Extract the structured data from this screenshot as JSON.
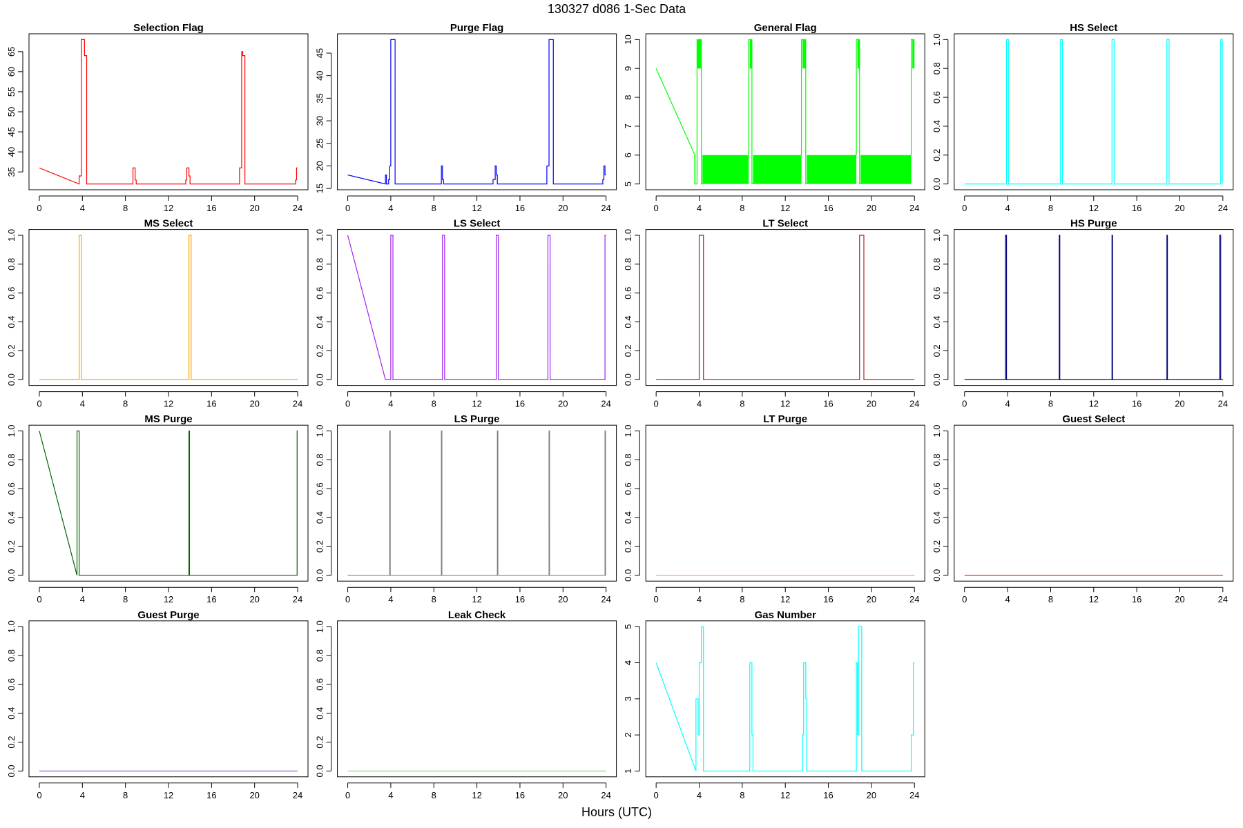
{
  "title": "130327    d086    1-Sec Data",
  "x_label": "Hours (UTC)",
  "chart_data": [
    {
      "type": "line",
      "title": "Selection Flag",
      "color": "#ff0000",
      "xlim": [
        -0.96,
        24.96
      ],
      "xticks": [
        0,
        4,
        8,
        12,
        16,
        20,
        24
      ],
      "ylim": [
        30.56,
        69.44
      ],
      "yticks": [
        35,
        40,
        45,
        50,
        55,
        60,
        65
      ],
      "x": [
        0,
        3.7,
        3.7,
        3.9,
        3.9,
        4.2,
        4.2,
        4.4,
        4.4,
        8.7,
        8.7,
        8.9,
        8.9,
        9,
        9,
        13.6,
        13.6,
        13.7,
        13.7,
        13.9,
        13.9,
        14,
        14,
        18.6,
        18.6,
        18.8,
        18.8,
        18.9,
        18.9,
        19.1,
        19.1,
        23.8,
        23.8,
        23.9,
        23.9,
        24
      ],
      "values": [
        36,
        32,
        34,
        34,
        68,
        68,
        64,
        64,
        32,
        32,
        36,
        36,
        33,
        33,
        32,
        32,
        33,
        33,
        36,
        36,
        34,
        34,
        32,
        32,
        36,
        36,
        65,
        65,
        64,
        64,
        32,
        32,
        33,
        33,
        36,
        36
      ]
    },
    {
      "type": "line",
      "title": "Purge Flag",
      "color": "#0000ff",
      "xlim": [
        -0.96,
        24.96
      ],
      "xticks": [
        0,
        4,
        8,
        12,
        16,
        20,
        24
      ],
      "ylim": [
        14.72,
        49.28
      ],
      "yticks": [
        15,
        20,
        25,
        30,
        35,
        40,
        45
      ],
      "x": [
        0,
        3.5,
        3.5,
        3.6,
        3.6,
        3.8,
        3.8,
        3.9,
        3.9,
        4,
        4,
        4.4,
        4.4,
        8.7,
        8.7,
        8.8,
        8.8,
        8.9,
        8.9,
        13.5,
        13.5,
        13.7,
        13.7,
        13.8,
        13.8,
        13.9,
        13.9,
        18.5,
        18.5,
        18.7,
        18.7,
        19.1,
        19.1,
        23.7,
        23.7,
        23.8,
        23.8,
        23.9,
        23.9,
        24
      ],
      "values": [
        18,
        16,
        18,
        18,
        16,
        16,
        17,
        17,
        20,
        20,
        48,
        48,
        16,
        16,
        20,
        20,
        17,
        17,
        16,
        16,
        17,
        17,
        20,
        20,
        18,
        18,
        16,
        16,
        20,
        20,
        48,
        48,
        16,
        16,
        17,
        17,
        20,
        20,
        18,
        18
      ]
    },
    {
      "type": "line",
      "title": "General Flag",
      "color": "#00ff00",
      "xlim": [
        -0.96,
        24.96
      ],
      "xticks": [
        0,
        4,
        8,
        12,
        16,
        20,
        24
      ],
      "ylim": [
        4.8,
        10.2
      ],
      "yticks": [
        5,
        6,
        7,
        8,
        9,
        10
      ],
      "x": [
        0,
        3.6,
        3.6,
        3.8,
        3.8,
        4.2,
        4.2,
        8.6,
        8.6,
        8.9,
        8.9,
        13.5,
        13.5,
        13.9,
        13.9,
        18.6,
        18.6,
        18.9,
        18.9,
        23.7,
        23.7,
        24
      ],
      "values": [
        9,
        6,
        5,
        5,
        10,
        10,
        5,
        6,
        10,
        10,
        5,
        6,
        10,
        10,
        5,
        6,
        10,
        10,
        5,
        6,
        10,
        10
      ],
      "bands": [
        {
          "x": [
            3.8,
            4.2
          ],
          "y": [
            9,
            10
          ]
        },
        {
          "x": [
            8.7,
            8.9
          ],
          "y": [
            9,
            10
          ]
        },
        {
          "x": [
            13.6,
            13.9
          ],
          "y": [
            9,
            10
          ]
        },
        {
          "x": [
            18.7,
            18.9
          ],
          "y": [
            9,
            10
          ]
        },
        {
          "x": [
            23.8,
            24
          ],
          "y": [
            9,
            10
          ]
        },
        {
          "x": [
            3.55,
            3.65
          ],
          "y": [
            5,
            6
          ]
        },
        {
          "x": [
            4.3,
            8.6
          ],
          "y": [
            5,
            6
          ]
        },
        {
          "x": [
            9.0,
            13.5
          ],
          "y": [
            5,
            6
          ]
        },
        {
          "x": [
            14.0,
            18.6
          ],
          "y": [
            5,
            6
          ]
        },
        {
          "x": [
            19.0,
            23.7
          ],
          "y": [
            5,
            6
          ]
        }
      ]
    },
    {
      "type": "line",
      "title": "HS Select",
      "color": "#00ffff",
      "xlim": [
        -0.96,
        24.96
      ],
      "xticks": [
        0,
        4,
        8,
        12,
        16,
        20,
        24
      ],
      "ylim": [
        -0.04,
        1.04
      ],
      "yticks": [
        {
          "value": 0,
          "label": "0.0"
        },
        0.2,
        0.4,
        0.6,
        0.8,
        {
          "value": 1,
          "label": "1.0"
        }
      ],
      "x": [
        0,
        3.9,
        3.9,
        4.1,
        4.1,
        8.9,
        8.9,
        9.1,
        9.1,
        13.7,
        13.7,
        13.9,
        13.9,
        18.8,
        18.8,
        19,
        19,
        23.8,
        23.8,
        23.95,
        23.95
      ],
      "values": [
        0,
        0,
        1,
        1,
        0,
        0,
        1,
        1,
        0,
        0,
        1,
        1,
        0,
        0,
        1,
        1,
        0,
        0,
        1,
        1,
        0
      ]
    },
    {
      "type": "line",
      "title": "MS Select",
      "color": "#ffa500",
      "xlim": [
        -0.96,
        24.96
      ],
      "xticks": [
        0,
        4,
        8,
        12,
        16,
        20,
        24
      ],
      "ylim": [
        -0.04,
        1.04
      ],
      "yticks": [
        {
          "value": 0,
          "label": "0.0"
        },
        0.2,
        0.4,
        0.6,
        0.8,
        {
          "value": 1,
          "label": "1.0"
        }
      ],
      "x": [
        0,
        3.7,
        3.7,
        3.9,
        3.9,
        13.9,
        13.9,
        14.1,
        14.1,
        24
      ],
      "values": [
        0,
        0,
        1,
        1,
        0,
        0,
        1,
        1,
        0,
        0
      ]
    },
    {
      "type": "line",
      "title": "LS Select",
      "color": "#a020f0",
      "xlim": [
        -0.96,
        24.96
      ],
      "xticks": [
        0,
        4,
        8,
        12,
        16,
        20,
        24
      ],
      "ylim": [
        -0.04,
        1.04
      ],
      "yticks": [
        {
          "value": 0,
          "label": "0.0"
        },
        0.2,
        0.4,
        0.6,
        0.8,
        {
          "value": 1,
          "label": "1.0"
        }
      ],
      "x": [
        0,
        3.5,
        4,
        4,
        4.2,
        4.2,
        8.8,
        8.8,
        9,
        9,
        13.8,
        13.8,
        14,
        14,
        18.6,
        18.6,
        18.8,
        18.8,
        23.9,
        23.9,
        24
      ],
      "values": [
        1,
        0,
        0,
        1,
        1,
        0,
        0,
        1,
        1,
        0,
        0,
        1,
        1,
        0,
        0,
        1,
        1,
        0,
        0,
        1,
        1
      ]
    },
    {
      "type": "line",
      "title": "LT Select",
      "color": "#a52a2a",
      "xlim": [
        -0.96,
        24.96
      ],
      "xticks": [
        0,
        4,
        8,
        12,
        16,
        20,
        24
      ],
      "ylim": [
        -0.04,
        1.04
      ],
      "yticks": [
        {
          "value": 0,
          "label": "0.0"
        },
        0.2,
        0.4,
        0.6,
        0.8,
        {
          "value": 1,
          "label": "1.0"
        }
      ],
      "x": [
        0,
        4,
        4,
        4.4,
        4.4,
        18.9,
        18.9,
        19.3,
        19.3,
        24
      ],
      "values": [
        0,
        0,
        1,
        1,
        0,
        0,
        1,
        1,
        0,
        0
      ]
    },
    {
      "type": "line",
      "title": "HS Purge",
      "color": "#000080",
      "xlim": [
        -0.96,
        24.96
      ],
      "xticks": [
        0,
        4,
        8,
        12,
        16,
        20,
        24
      ],
      "ylim": [
        -0.04,
        1.04
      ],
      "yticks": [
        {
          "value": 0,
          "label": "0.0"
        },
        0.2,
        0.4,
        0.6,
        0.8,
        {
          "value": 1,
          "label": "1.0"
        }
      ],
      "x": [
        0,
        3.8,
        3.8,
        3.9,
        3.9,
        8.8,
        8.8,
        8.85,
        8.85,
        13.7,
        13.7,
        13.75,
        13.75,
        18.8,
        18.8,
        18.85,
        18.85,
        23.7,
        23.7,
        23.8,
        23.8,
        24
      ],
      "values": [
        0,
        0,
        1,
        1,
        0,
        0,
        1,
        1,
        0,
        0,
        1,
        1,
        0,
        0,
        1,
        1,
        0,
        0,
        1,
        1,
        0,
        0
      ]
    },
    {
      "type": "line",
      "title": "MS Purge",
      "color": "#006400",
      "xlim": [
        -0.96,
        24.96
      ],
      "xticks": [
        0,
        4,
        8,
        12,
        16,
        20,
        24
      ],
      "ylim": [
        -0.04,
        1.04
      ],
      "yticks": [
        {
          "value": 0,
          "label": "0.0"
        },
        0.2,
        0.4,
        0.6,
        0.8,
        {
          "value": 1,
          "label": "1.0"
        }
      ],
      "x": [
        0,
        3.5,
        3.5,
        3.7,
        3.7,
        13.9,
        13.9,
        13.95,
        13.95,
        23.95,
        23.95,
        24
      ],
      "values": [
        1,
        0,
        1,
        1,
        0,
        0,
        1,
        1,
        0,
        0,
        1,
        1
      ]
    },
    {
      "type": "line",
      "title": "LS Purge",
      "color": "#808080",
      "xlim": [
        -0.96,
        24.96
      ],
      "xticks": [
        0,
        4,
        8,
        12,
        16,
        20,
        24
      ],
      "ylim": [
        -0.04,
        1.04
      ],
      "yticks": [
        {
          "value": 0,
          "label": "0.0"
        },
        0.2,
        0.4,
        0.6,
        0.8,
        {
          "value": 1,
          "label": "1.0"
        }
      ],
      "x": [
        0,
        3.9,
        3.9,
        3.95,
        3.95,
        8.7,
        8.7,
        8.75,
        8.75,
        13.9,
        13.9,
        13.95,
        13.95,
        18.7,
        18.7,
        18.75,
        18.75,
        23.9,
        23.9,
        23.95,
        23.95,
        24
      ],
      "values": [
        0,
        0,
        1,
        1,
        0,
        0,
        1,
        1,
        0,
        0,
        1,
        1,
        0,
        0,
        1,
        1,
        0,
        0,
        1,
        1,
        0,
        0
      ]
    },
    {
      "type": "line",
      "title": "LT Purge",
      "color": "#ee82ee",
      "xlim": [
        -0.96,
        24.96
      ],
      "xticks": [
        0,
        4,
        8,
        12,
        16,
        20,
        24
      ],
      "ylim": [
        -0.04,
        1.04
      ],
      "yticks": [
        {
          "value": 0,
          "label": "0.0"
        },
        0.2,
        0.4,
        0.6,
        0.8,
        {
          "value": 1,
          "label": "1.0"
        }
      ],
      "x": [
        0,
        24
      ],
      "values": [
        0,
        0
      ]
    },
    {
      "type": "line",
      "title": "Guest Select",
      "color": "#ff0000",
      "xlim": [
        -0.96,
        24.96
      ],
      "xticks": [
        0,
        4,
        8,
        12,
        16,
        20,
        24
      ],
      "ylim": [
        -0.04,
        1.04
      ],
      "yticks": [
        {
          "value": 0,
          "label": "0.0"
        },
        0.2,
        0.4,
        0.6,
        0.8,
        {
          "value": 1,
          "label": "1.0"
        }
      ],
      "x": [
        0,
        24
      ],
      "values": [
        0,
        0
      ]
    },
    {
      "type": "line",
      "title": "Guest Purge",
      "color": "#6a5acd",
      "xlim": [
        -0.96,
        24.96
      ],
      "xticks": [
        0,
        4,
        8,
        12,
        16,
        20,
        24
      ],
      "ylim": [
        -0.04,
        1.04
      ],
      "yticks": [
        {
          "value": 0,
          "label": "0.0"
        },
        0.2,
        0.4,
        0.6,
        0.8,
        {
          "value": 1,
          "label": "1.0"
        }
      ],
      "x": [
        0,
        24
      ],
      "values": [
        0,
        0
      ]
    },
    {
      "type": "line",
      "title": "Leak Check",
      "color": "#7ccd7c",
      "xlim": [
        -0.96,
        24.96
      ],
      "xticks": [
        0,
        4,
        8,
        12,
        16,
        20,
        24
      ],
      "ylim": [
        -0.04,
        1.04
      ],
      "yticks": [
        {
          "value": 0,
          "label": "0.0"
        },
        0.2,
        0.4,
        0.6,
        0.8,
        {
          "value": 1,
          "label": "1.0"
        }
      ],
      "x": [
        0,
        24
      ],
      "values": [
        0,
        0
      ]
    },
    {
      "type": "line",
      "title": "Gas Number",
      "color": "#00ffff",
      "xlim": [
        -0.96,
        24.96
      ],
      "xticks": [
        0,
        4,
        8,
        12,
        16,
        20,
        24
      ],
      "ylim": [
        0.84,
        5.16
      ],
      "yticks": [
        1,
        2,
        3,
        4,
        5
      ],
      "x": [
        0,
        3.7,
        3.7,
        3.9,
        3.9,
        4,
        4,
        4.2,
        4.2,
        4.4,
        4.4,
        8.7,
        8.7,
        8.9,
        8.9,
        9,
        9,
        13.6,
        13.6,
        13.7,
        13.7,
        13.9,
        13.9,
        14,
        14,
        18.6,
        18.6,
        18.7,
        18.7,
        18.8,
        18.8,
        19.1,
        19.1,
        23.7,
        23.7,
        23.9,
        23.9,
        24
      ],
      "values": [
        4,
        1,
        3,
        3,
        2,
        2,
        4,
        4,
        5,
        5,
        1,
        1,
        4,
        4,
        2,
        2,
        1,
        1,
        2,
        2,
        4,
        4,
        3,
        3,
        1,
        1,
        4,
        4,
        2,
        2,
        5,
        5,
        1,
        1,
        2,
        2,
        4,
        4
      ]
    }
  ]
}
